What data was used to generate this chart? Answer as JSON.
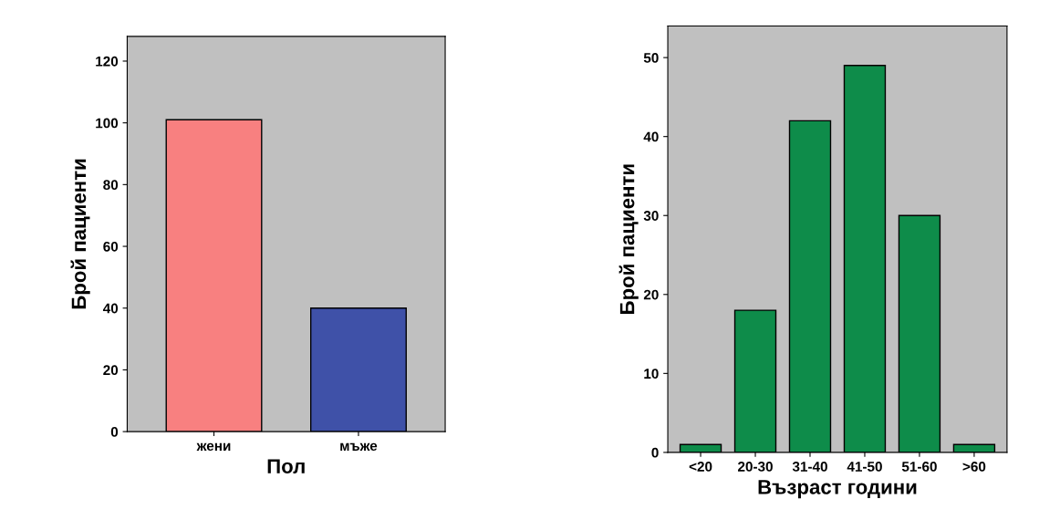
{
  "chart_data": [
    {
      "type": "bar",
      "xlabel": "Пол",
      "ylabel": "Брой пациенти",
      "categories": [
        "жени",
        "мъже"
      ],
      "values": [
        101,
        40
      ],
      "colors": [
        "#f88080",
        "#3f51a8"
      ],
      "ylim": [
        0,
        128
      ],
      "yticks": [
        0,
        20,
        40,
        60,
        80,
        100,
        120
      ],
      "grid": false,
      "legend": false
    },
    {
      "type": "bar",
      "xlabel": "Възраст години",
      "ylabel": "Брой пациенти",
      "categories": [
        "<20",
        "20-30",
        "31-40",
        "41-50",
        "51-60",
        ">60"
      ],
      "values": [
        1,
        18,
        42,
        49,
        30,
        1
      ],
      "color": "#0e8c4a",
      "ylim": [
        0,
        54
      ],
      "yticks": [
        0,
        10,
        20,
        30,
        40,
        50
      ],
      "grid": false,
      "legend": false
    }
  ]
}
